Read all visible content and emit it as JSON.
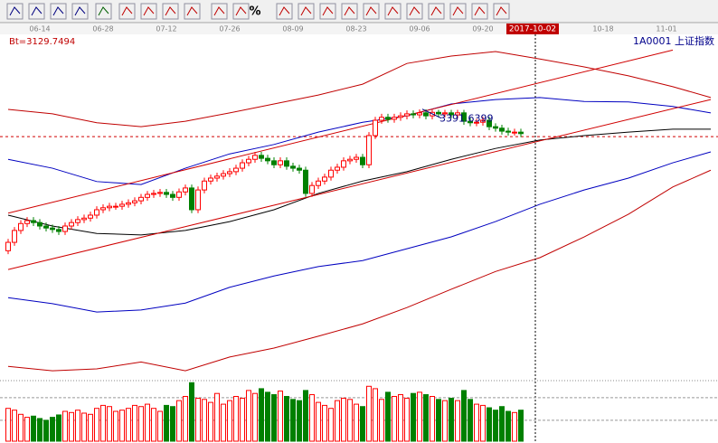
{
  "toolbar": {
    "percent_button": "%"
  },
  "chart_data": {
    "type": "candlestick",
    "title": "1A0001 上证指数",
    "indicator_label": "Bt=3129.7494",
    "crosshair": "2017-10-02",
    "categories": [
      null,
      null,
      null,
      null,
      null,
      "06-14",
      null,
      null,
      null,
      null,
      null,
      null,
      null,
      null,
      null,
      "06-28",
      null,
      null,
      null,
      null,
      null,
      null,
      null,
      null,
      null,
      "07-12",
      null,
      null,
      null,
      null,
      null,
      null,
      null,
      null,
      null,
      "07-26",
      null,
      null,
      null,
      null,
      null,
      null,
      null,
      null,
      null,
      "08-09",
      null,
      null,
      null,
      null,
      null,
      null,
      null,
      null,
      null,
      "08-23",
      null,
      null,
      null,
      null,
      null,
      null,
      null,
      null,
      null,
      "09-06",
      null,
      null,
      null,
      null,
      null,
      null,
      null,
      null,
      null,
      "09-20",
      null,
      null,
      null,
      null,
      null,
      null,
      null,
      "2017-10-02",
      null,
      null,
      null,
      null,
      null,
      null,
      null,
      null,
      null,
      null,
      "10-18",
      null,
      null,
      null,
      null,
      null,
      null,
      null,
      null,
      null,
      "11-01",
      null,
      null,
      null,
      null,
      null,
      null,
      null
    ],
    "open": [
      3105,
      3122,
      3146,
      3160,
      3166,
      3162,
      3155,
      3151,
      3148,
      3144,
      3155,
      3162,
      3168,
      3171,
      3177,
      3188,
      3192,
      3195,
      3195,
      3199,
      3202,
      3206,
      3213,
      3219,
      3221,
      3223,
      3219,
      3213,
      3224,
      3232,
      3188,
      3228,
      3246,
      3252,
      3256,
      3261,
      3265,
      3272,
      3283,
      3290,
      3298,
      3292,
      3287,
      3279,
      3287,
      3276,
      3272,
      3268,
      3221,
      3237,
      3246,
      3254,
      3268,
      3274,
      3287,
      3290,
      3294,
      3279,
      3338,
      3369,
      3375,
      3371,
      3375,
      3378,
      3382,
      3380,
      3384,
      3378,
      3385,
      3382,
      3384,
      3380,
      3384,
      3367,
      3364,
      3365,
      3369,
      3356,
      3353,
      3347,
      3345,
      3345,
      null,
      null,
      null,
      null,
      null,
      null,
      null,
      null,
      null,
      null,
      null,
      null,
      null,
      null,
      null,
      null,
      null,
      null,
      null,
      null,
      null,
      null,
      null,
      null,
      null,
      null,
      null,
      null,
      null,
      null
    ],
    "high": [
      3129,
      3153,
      3167,
      3173,
      3173,
      3169,
      3162,
      3158,
      3155,
      3162,
      3169,
      3175,
      3178,
      3184,
      3195,
      3199,
      3202,
      3202,
      3206,
      3209,
      3213,
      3220,
      3226,
      3228,
      3230,
      3230,
      3226,
      3231,
      3239,
      3239,
      3235,
      3253,
      3259,
      3263,
      3268,
      3272,
      3279,
      3290,
      3297,
      3305,
      3305,
      3299,
      3294,
      3294,
      3294,
      3283,
      3279,
      3275,
      3244,
      3253,
      3261,
      3275,
      3281,
      3294,
      3297,
      3301,
      3301,
      3345,
      3376,
      3382,
      3382,
      3382,
      3385,
      3389,
      3389,
      3391,
      3391,
      3390,
      3390,
      3390,
      3390,
      3390,
      3390,
      3374,
      3372,
      3376,
      3376,
      3363,
      3360,
      3354,
      3352,
      3352,
      null,
      null,
      null,
      null,
      null,
      null,
      null,
      null,
      null,
      null,
      null,
      null,
      null,
      null,
      null,
      null,
      null,
      null,
      null,
      null,
      null,
      null,
      null,
      null,
      null,
      null,
      null,
      null,
      null,
      null
    ],
    "low": [
      3098,
      3115,
      3139,
      3153,
      3155,
      3148,
      3144,
      3141,
      3137,
      3137,
      3148,
      3155,
      3161,
      3164,
      3170,
      3181,
      3185,
      3188,
      3188,
      3192,
      3195,
      3199,
      3206,
      3212,
      3214,
      3212,
      3206,
      3206,
      3217,
      3181,
      3181,
      3221,
      3239,
      3245,
      3249,
      3254,
      3258,
      3265,
      3276,
      3283,
      3285,
      3280,
      3272,
      3272,
      3269,
      3265,
      3261,
      3214,
      3214,
      3230,
      3239,
      3247,
      3261,
      3267,
      3280,
      3283,
      3272,
      3272,
      3331,
      3362,
      3364,
      3364,
      3368,
      3371,
      3373,
      3373,
      3371,
      3371,
      3375,
      3375,
      3373,
      3373,
      3360,
      3357,
      3357,
      3358,
      3349,
      3346,
      3340,
      3338,
      3338,
      3335,
      null,
      null,
      null,
      null,
      null,
      null,
      null,
      null,
      null,
      null,
      null,
      null,
      null,
      null,
      null,
      null,
      null,
      null,
      null,
      null,
      null,
      null,
      null,
      null,
      null,
      null,
      null,
      null,
      null,
      null
    ],
    "close": [
      3122,
      3146,
      3160,
      3166,
      3162,
      3155,
      3151,
      3148,
      3144,
      3155,
      3162,
      3168,
      3171,
      3177,
      3188,
      3192,
      3195,
      3195,
      3199,
      3202,
      3206,
      3213,
      3219,
      3221,
      3223,
      3219,
      3213,
      3224,
      3232,
      3188,
      3228,
      3246,
      3252,
      3256,
      3261,
      3265,
      3272,
      3283,
      3290,
      3298,
      3292,
      3287,
      3279,
      3287,
      3276,
      3272,
      3268,
      3221,
      3237,
      3246,
      3254,
      3268,
      3274,
      3287,
      3290,
      3294,
      3279,
      3338,
      3369,
      3375,
      3371,
      3375,
      3378,
      3382,
      3380,
      3384,
      3378,
      3385,
      3382,
      3384,
      3380,
      3384,
      3367,
      3364,
      3365,
      3369,
      3356,
      3353,
      3347,
      3345,
      3345,
      3342,
      null,
      null,
      null,
      null,
      null,
      null,
      null,
      null,
      null,
      null,
      null,
      null,
      null,
      null,
      null,
      null,
      null,
      null,
      null,
      null,
      null,
      null,
      null,
      null,
      null,
      null,
      null,
      null,
      null,
      null
    ],
    "volume": [
      55,
      52,
      45,
      40,
      42,
      38,
      35,
      40,
      44,
      50,
      48,
      52,
      47,
      45,
      55,
      60,
      58,
      50,
      52,
      55,
      60,
      58,
      62,
      55,
      50,
      60,
      58,
      68,
      75,
      98,
      72,
      70,
      65,
      80,
      62,
      68,
      75,
      72,
      85,
      80,
      88,
      82,
      78,
      84,
      75,
      70,
      68,
      85,
      78,
      65,
      60,
      55,
      68,
      72,
      70,
      62,
      58,
      92,
      88,
      70,
      82,
      75,
      78,
      72,
      80,
      82,
      78,
      75,
      70,
      68,
      72,
      68,
      85,
      70,
      62,
      60,
      56,
      52,
      58,
      50,
      48,
      52,
      null,
      null,
      null,
      null,
      null,
      null,
      null,
      null,
      null,
      null,
      null,
      null,
      null,
      null,
      null,
      null,
      null,
      null,
      null,
      null,
      null,
      null,
      null,
      null,
      null,
      null,
      null,
      null,
      null,
      null
    ],
    "overlay_x": [
      0,
      7,
      14,
      21,
      28,
      35,
      42,
      49,
      56,
      63,
      70,
      77,
      84,
      91,
      98,
      105,
      111
    ],
    "overlays": [
      {
        "color": "#c00000",
        "values": [
          3391,
          3382,
          3364,
          3356,
          3367,
          3384,
          3402,
          3420,
          3442,
          3484,
          3499,
          3508,
          3493,
          3477,
          3459,
          3437,
          3415
        ]
      },
      {
        "color": "#0000c0",
        "values": [
          3290,
          3272,
          3245,
          3239,
          3272,
          3301,
          3320,
          3345,
          3365,
          3378,
          3402,
          3411,
          3415,
          3407,
          3406,
          3397,
          3384
        ]
      },
      {
        "color": "#000000",
        "values": [
          3177,
          3155,
          3140,
          3137,
          3146,
          3164,
          3188,
          3221,
          3246,
          3265,
          3290,
          3312,
          3329,
          3338,
          3345,
          3351,
          3351
        ]
      },
      {
        "color": "#0000c0",
        "values": [
          3010,
          2998,
          2981,
          2985,
          2999,
          3031,
          3054,
          3073,
          3085,
          3109,
          3133,
          3164,
          3199,
          3228,
          3252,
          3283,
          3305
        ]
      },
      {
        "color": "#c00000",
        "values": [
          2871,
          2862,
          2866,
          2880,
          2862,
          2890,
          2908,
          2932,
          2957,
          2990,
          3027,
          3063,
          3091,
          3133,
          3179,
          3234,
          3268
        ]
      }
    ],
    "trend_lines": [
      {
        "color": "#d00000",
        "x": [
          0,
          105
        ],
        "values": [
          3181,
          3511
        ]
      },
      {
        "color": "#d00000",
        "x": [
          0,
          111
        ],
        "values": [
          3067,
          3411
        ]
      }
    ],
    "price_line": 3336,
    "annotation": {
      "label": "3391.6399",
      "value": 3391.6399
    },
    "up_color": "#ff0000",
    "down_color": "#008000",
    "ylim": [
      2844,
      3557.5
    ],
    "volume_ylim": [
      0,
      100
    ],
    "volume_yticks": [
      35,
      73
    ]
  }
}
